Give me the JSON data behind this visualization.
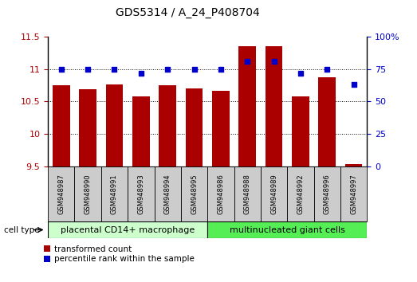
{
  "title": "GDS5314 / A_24_P408704",
  "samples": [
    "GSM948987",
    "GSM948990",
    "GSM948991",
    "GSM948993",
    "GSM948994",
    "GSM948995",
    "GSM948986",
    "GSM948988",
    "GSM948989",
    "GSM948992",
    "GSM948996",
    "GSM948997"
  ],
  "transformed_count": [
    10.75,
    10.69,
    10.76,
    10.58,
    10.75,
    10.7,
    10.66,
    11.35,
    11.35,
    10.58,
    10.88,
    9.54
  ],
  "percentile_rank": [
    75,
    75,
    75,
    72,
    75,
    75,
    75,
    81,
    81,
    72,
    75,
    63
  ],
  "group1_label": "placental CD14+ macrophage",
  "group2_label": "multinucleated giant cells",
  "group1_count": 6,
  "group2_count": 6,
  "ylim_left": [
    9.5,
    11.5
  ],
  "ylim_right": [
    0,
    100
  ],
  "yticks_left": [
    9.5,
    10.0,
    10.5,
    11.0,
    11.5
  ],
  "yticks_right": [
    0,
    25,
    50,
    75,
    100
  ],
  "bar_color": "#AA0000",
  "dot_color": "#0000CC",
  "group1_bg": "#CCFFCC",
  "group2_bg": "#55EE55",
  "sample_bg": "#CCCCCC",
  "legend_bar_label": "transformed count",
  "legend_dot_label": "percentile rank within the sample",
  "cell_type_label": "cell type",
  "right_axis_color": "#0000CC",
  "left_axis_color": "#AA0000",
  "title_fontsize": 10,
  "tick_fontsize": 8,
  "sample_fontsize": 6,
  "group_fontsize": 8,
  "legend_fontsize": 7.5
}
